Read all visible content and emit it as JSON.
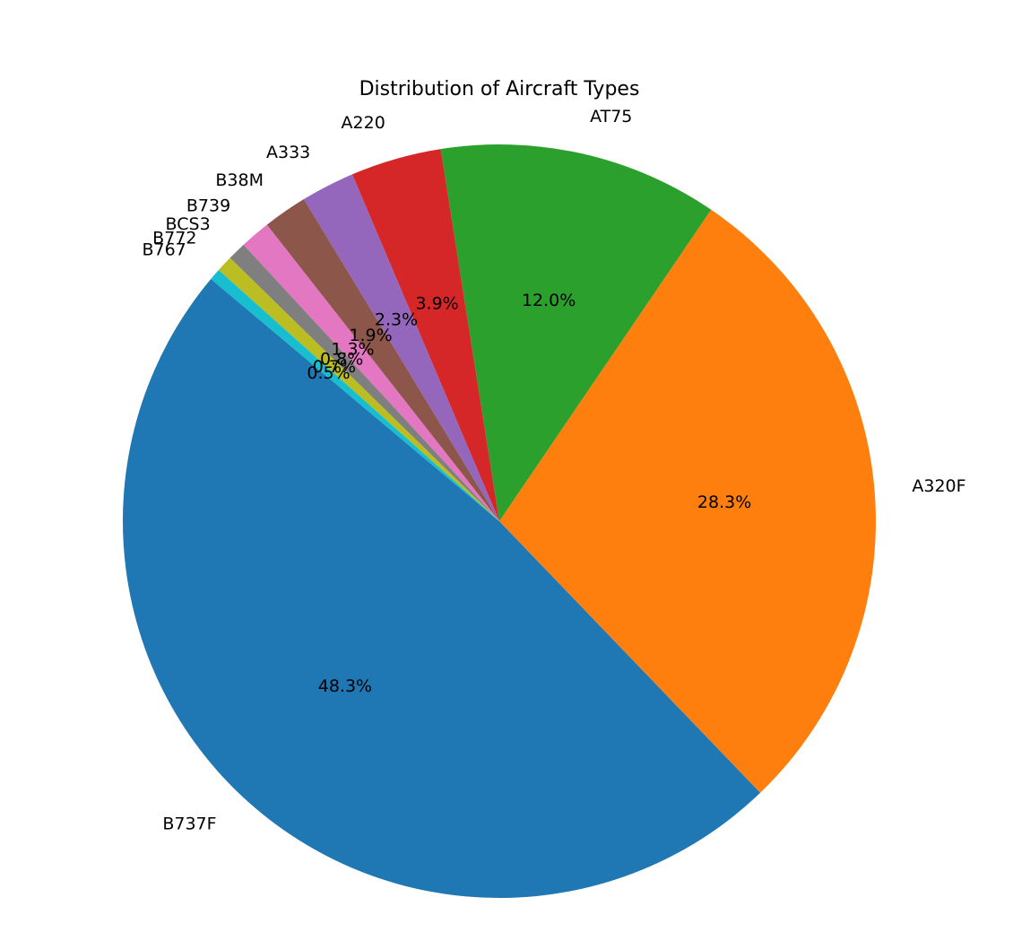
{
  "chart_data": {
    "type": "pie",
    "title": "Distribution of Aircraft Types",
    "start_angle_deg": 140,
    "direction": "counterclockwise",
    "slices": [
      {
        "label": "B737F",
        "value": 48.3,
        "pct_label": "48.3%",
        "color": "#1f77b4"
      },
      {
        "label": "A320F",
        "value": 28.3,
        "pct_label": "28.3%",
        "color": "#ff7f0e"
      },
      {
        "label": "AT75",
        "value": 12.0,
        "pct_label": "12.0%",
        "color": "#2ca02c"
      },
      {
        "label": "A220",
        "value": 3.9,
        "pct_label": "3.9%",
        "color": "#d62728"
      },
      {
        "label": "A333",
        "value": 2.3,
        "pct_label": "2.3%",
        "color": "#9467bd"
      },
      {
        "label": "B38M",
        "value": 1.9,
        "pct_label": "1.9%",
        "color": "#8c564b"
      },
      {
        "label": "B739",
        "value": 1.3,
        "pct_label": "1.3%",
        "color": "#e377c2"
      },
      {
        "label": "BCS3",
        "value": 0.8,
        "pct_label": "0.8%",
        "color": "#7f7f7f"
      },
      {
        "label": "B772",
        "value": 0.7,
        "pct_label": "0.7%",
        "color": "#bcbd22"
      },
      {
        "label": "B767",
        "value": 0.5,
        "pct_label": "0.5%",
        "color": "#17becf"
      }
    ]
  }
}
